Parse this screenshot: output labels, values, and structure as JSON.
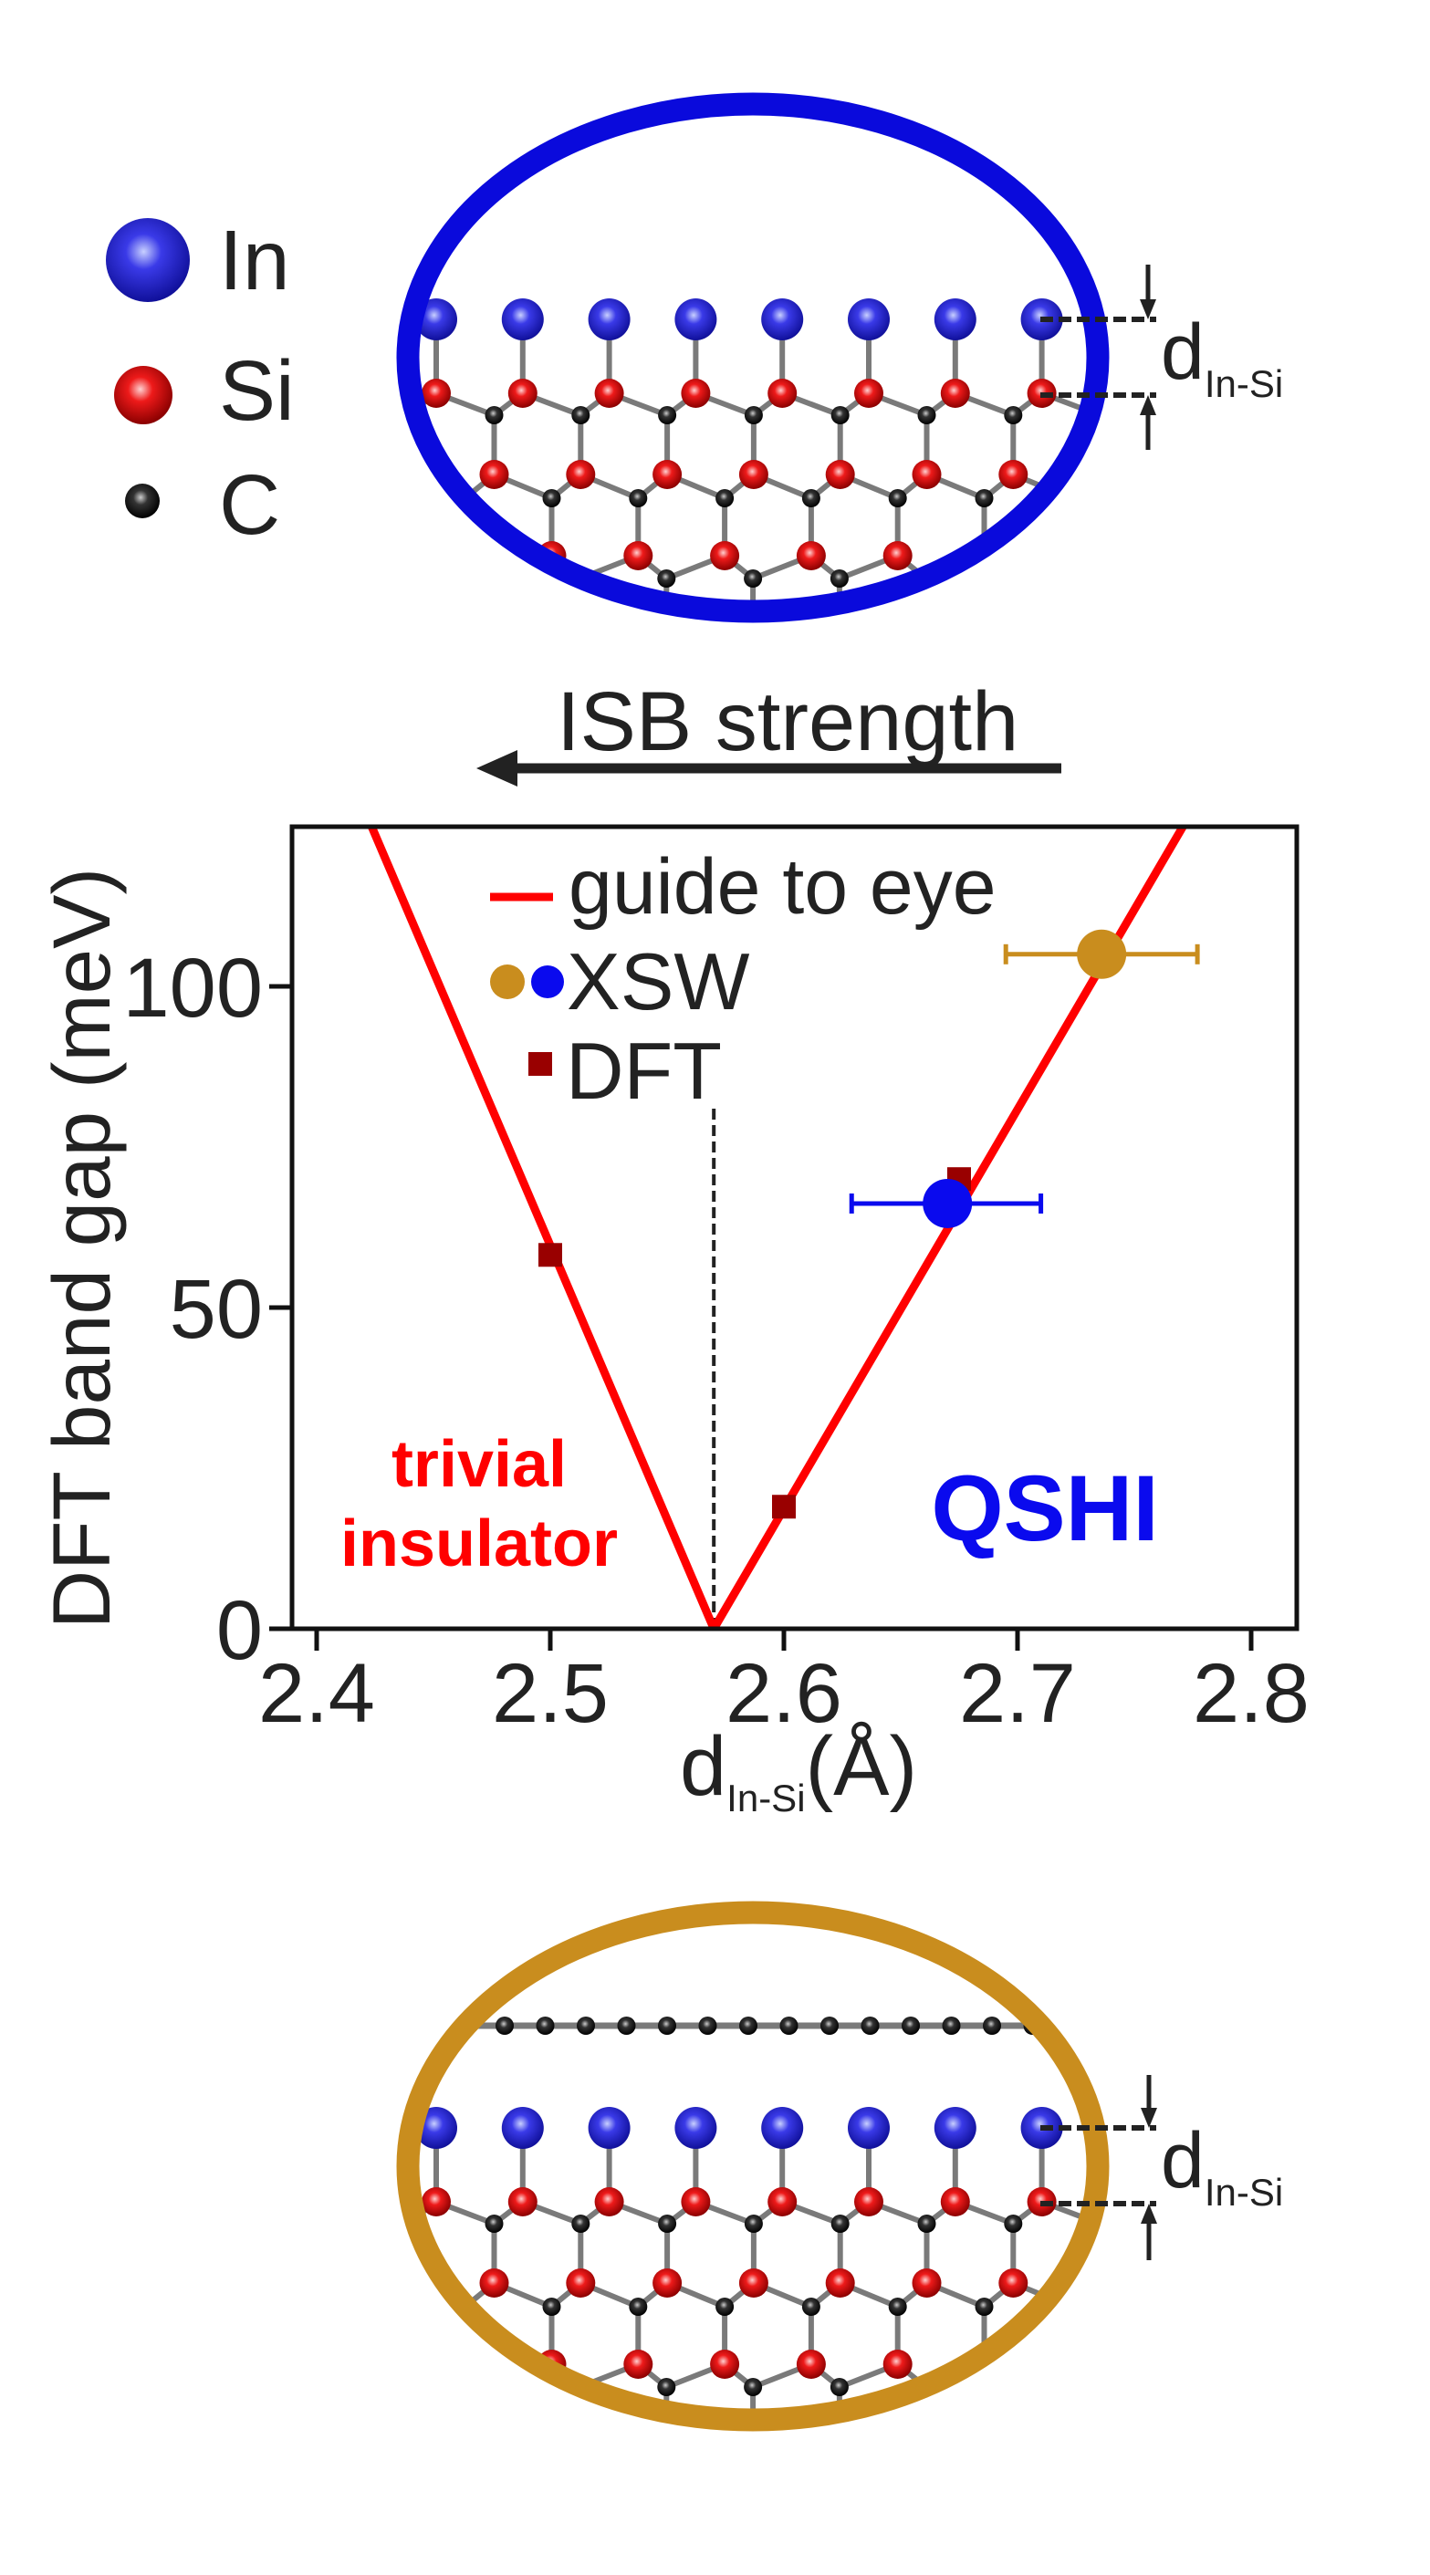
{
  "legend_atoms": [
    {
      "label": "In",
      "color": "#1c1cd6"
    },
    {
      "label": "Si",
      "color": "#e01010"
    },
    {
      "label": "C",
      "color": "#1a1a1a"
    }
  ],
  "top_structure": {
    "ring_color": "#0a0adc",
    "distance_label": "d",
    "distance_sub": "In-Si"
  },
  "bottom_structure": {
    "ring_color": "#c98d1e",
    "distance_label": "d",
    "distance_sub": "In-Si"
  },
  "arrow_label": "ISB strength",
  "chart_data": {
    "type": "line",
    "title": "",
    "xlabel": "d",
    "xlabel_sub": "In-Si",
    "xlabel_unit": "(Å)",
    "ylabel": "DFT band gap (meV)",
    "xlim": [
      2.3895,
      2.8195
    ],
    "ylim": [
      0,
      125
    ],
    "xticks": [
      2.4,
      2.5,
      2.6,
      2.7,
      2.8
    ],
    "xtick_labels": [
      "2.4",
      "2.5",
      "2.6",
      "2.7",
      "2.8"
    ],
    "yticks": [
      0,
      50,
      100
    ],
    "ytick_labels": [
      "0",
      "50",
      "100"
    ],
    "grid": false,
    "legend_position": "top-left",
    "legend": [
      {
        "label": "guide to eye"
      },
      {
        "label": "XSW"
      },
      {
        "label": "DFT"
      }
    ],
    "series": [
      {
        "name": "guide to eye",
        "type": "line",
        "color": "#ff0000",
        "x": [
          2.4234,
          2.57,
          2.771
        ],
        "y": [
          125,
          0,
          125
        ]
      },
      {
        "name": "XSW",
        "type": "scatter_errorbar",
        "points": [
          {
            "x": 2.736,
            "y": 105,
            "xmin": 2.695,
            "xmax": 2.777,
            "color": "#c98d1e"
          },
          {
            "x": 2.67,
            "y": 66.2,
            "xmin": 2.629,
            "xmax": 2.71,
            "color": "#0a0aee"
          }
        ]
      },
      {
        "name": "DFT",
        "type": "scatter",
        "color": "#990000",
        "x": [
          2.5,
          2.6,
          2.675
        ],
        "y": [
          58.2,
          19,
          70
        ]
      }
    ],
    "vline": {
      "x": 2.57,
      "y_top": 81
    },
    "annotations": {
      "trivial_line1": "trivial",
      "trivial_line2": "insulator",
      "trivial_color": "#ff0000",
      "qshi": "QSHI",
      "qshi_color": "#0a0aee"
    }
  }
}
